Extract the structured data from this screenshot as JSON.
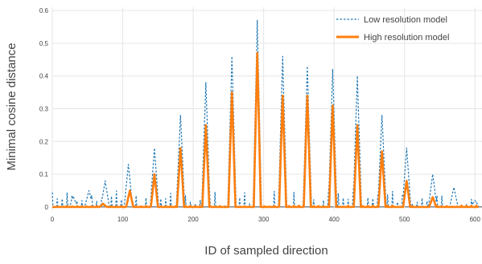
{
  "chart_data": {
    "type": "line",
    "title": "",
    "xlabel": "ID of sampled direction",
    "ylabel": "Minimal cosine distance",
    "xlim": [
      0,
      610
    ],
    "ylim": [
      -0.01,
      0.61
    ],
    "x_ticks": [
      "0",
      "100",
      "200",
      "300",
      "400",
      "500",
      "600"
    ],
    "y_ticks": [
      "0",
      "0.1",
      "0.2",
      "0.3",
      "0.4",
      "0.5",
      "0.6"
    ],
    "grid": true,
    "legend": "top-right",
    "series": [
      {
        "name": "Low resolution model",
        "style": "dotted",
        "color": "#1f77b4",
        "peaks": [
          {
            "x": 30,
            "y": 0.03
          },
          {
            "x": 52,
            "y": 0.05
          },
          {
            "x": 75,
            "y": 0.08
          },
          {
            "x": 108,
            "y": 0.13
          },
          {
            "x": 145,
            "y": 0.18
          },
          {
            "x": 182,
            "y": 0.28
          },
          {
            "x": 218,
            "y": 0.38
          },
          {
            "x": 255,
            "y": 0.46
          },
          {
            "x": 291,
            "y": 0.57
          },
          {
            "x": 327,
            "y": 0.46
          },
          {
            "x": 362,
            "y": 0.43
          },
          {
            "x": 398,
            "y": 0.42
          },
          {
            "x": 433,
            "y": 0.4
          },
          {
            "x": 468,
            "y": 0.28
          },
          {
            "x": 503,
            "y": 0.18
          },
          {
            "x": 540,
            "y": 0.1
          },
          {
            "x": 570,
            "y": 0.06
          },
          {
            "x": 600,
            "y": 0.02
          }
        ]
      },
      {
        "name": "High resolution model",
        "style": "solid",
        "color": "#ff7f0e",
        "peaks": [
          {
            "x": 72,
            "y": 0.01
          },
          {
            "x": 110,
            "y": 0.05
          },
          {
            "x": 145,
            "y": 0.1
          },
          {
            "x": 182,
            "y": 0.18
          },
          {
            "x": 218,
            "y": 0.25
          },
          {
            "x": 255,
            "y": 0.35
          },
          {
            "x": 291,
            "y": 0.47
          },
          {
            "x": 327,
            "y": 0.34
          },
          {
            "x": 362,
            "y": 0.34
          },
          {
            "x": 398,
            "y": 0.31
          },
          {
            "x": 433,
            "y": 0.25
          },
          {
            "x": 468,
            "y": 0.17
          },
          {
            "x": 503,
            "y": 0.08
          },
          {
            "x": 540,
            "y": 0.03
          }
        ]
      }
    ]
  }
}
